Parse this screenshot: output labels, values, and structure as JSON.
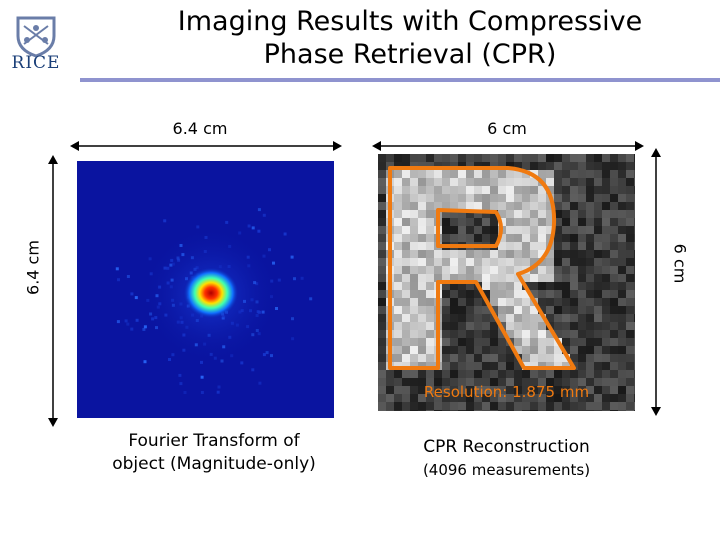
{
  "header": {
    "logo_text": "RICE",
    "title_line1": "Imaging Results with Compressive",
    "title_line2": "Phase Retrieval (CPR)"
  },
  "dimensions": {
    "left_width": "6.4 cm",
    "left_height": "6.4 cm",
    "right_width": "6 cm",
    "right_height": "6 cm"
  },
  "left_panel": {
    "caption_line1": "Fourier Transform of",
    "caption_line2": "object (Magnitude-only)"
  },
  "right_panel": {
    "resolution": "Resolution: 1.875 mm",
    "caption_line1": "CPR Reconstruction",
    "caption_line2": "(4096 measurements)"
  },
  "colors": {
    "accent_rule": "#8f93cf",
    "reconstruction_outline": "#f07a10",
    "fourier_background": "#0a14a0"
  }
}
